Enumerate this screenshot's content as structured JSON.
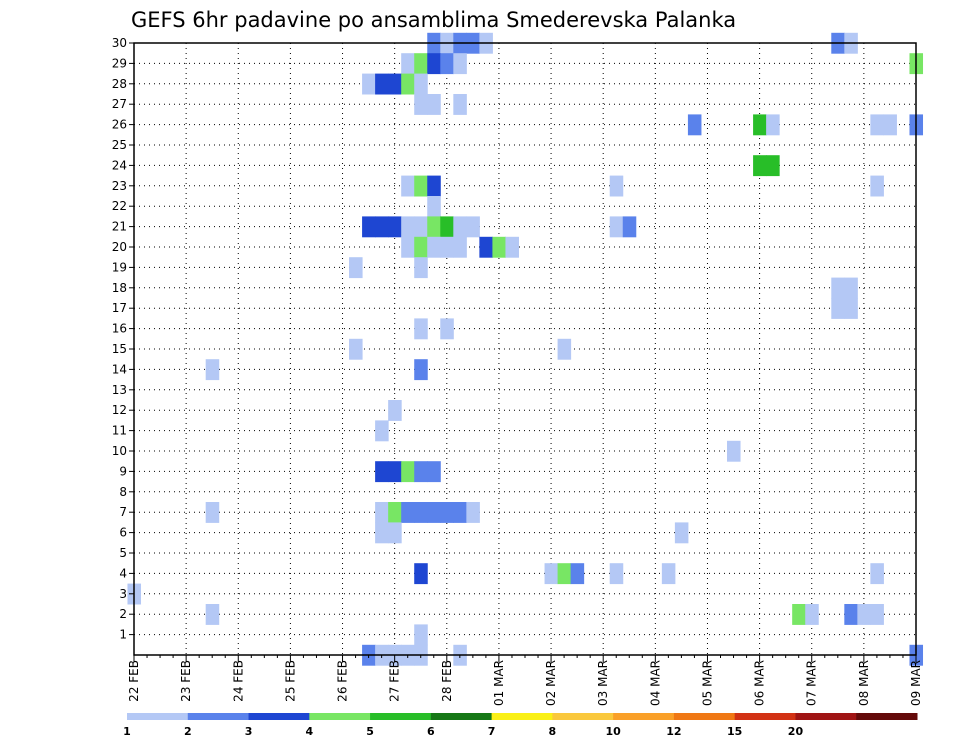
{
  "chart_data": {
    "type": "heatmap",
    "title": "GEFS 6hr padavine po ansamblima Smederevska Palanka",
    "x_tick_labels": [
      "22 FEB",
      "23 FEB",
      "24 FEB",
      "25 FEB",
      "26 FEB",
      "27 FEB",
      "28 FEB",
      "01 MAR",
      "02 MAR",
      "03 MAR",
      "04 MAR",
      "05 MAR",
      "06 MAR",
      "07 MAR",
      "08 MAR",
      "09 MAR"
    ],
    "x_range_steps": [
      0,
      60
    ],
    "y_tick_labels": [
      "1",
      "2",
      "3",
      "4",
      "5",
      "6",
      "7",
      "8",
      "9",
      "10",
      "11",
      "12",
      "13",
      "14",
      "15",
      "16",
      "17",
      "18",
      "19",
      "20",
      "21",
      "22",
      "23",
      "24",
      "25",
      "26",
      "27",
      "28",
      "29",
      "30"
    ],
    "y_range": [
      0,
      30
    ],
    "grid": true,
    "colorbar": {
      "labels": [
        "1",
        "2",
        "3",
        "4",
        "5",
        "6",
        "7",
        "8",
        "10",
        "12",
        "15",
        "20"
      ],
      "colors": [
        "#b4c8f5",
        "#5a82eb",
        "#1e46d2",
        "#78e664",
        "#28be28",
        "#167816",
        "#faf016",
        "#fac83c",
        "#faa028",
        "#f07814",
        "#d23214",
        "#a01414",
        "#640a0a"
      ]
    },
    "cells": [
      {
        "member": 30,
        "step": 23,
        "bin": 1
      },
      {
        "member": 30,
        "step": 24,
        "bin": 0
      },
      {
        "member": 30,
        "step": 25,
        "bin": 1
      },
      {
        "member": 30,
        "step": 26,
        "bin": 1
      },
      {
        "member": 30,
        "step": 27,
        "bin": 0
      },
      {
        "member": 30,
        "step": 54,
        "bin": 1
      },
      {
        "member": 30,
        "step": 55,
        "bin": 0
      },
      {
        "member": 29,
        "step": 21,
        "bin": 0
      },
      {
        "member": 29,
        "step": 22,
        "bin": 3
      },
      {
        "member": 29,
        "step": 23,
        "bin": 2
      },
      {
        "member": 29,
        "step": 24,
        "bin": 1
      },
      {
        "member": 29,
        "step": 25,
        "bin": 0
      },
      {
        "member": 29,
        "step": 60,
        "bin": 3
      },
      {
        "member": 28,
        "step": 18,
        "bin": 0
      },
      {
        "member": 28,
        "step": 19,
        "bin": 2
      },
      {
        "member": 28,
        "step": 20,
        "bin": 2
      },
      {
        "member": 28,
        "step": 21,
        "bin": 3
      },
      {
        "member": 28,
        "step": 22,
        "bin": 0
      },
      {
        "member": 27,
        "step": 22,
        "bin": 0
      },
      {
        "member": 27,
        "step": 23,
        "bin": 0
      },
      {
        "member": 27,
        "step": 25,
        "bin": 0
      },
      {
        "member": 26,
        "step": 43,
        "bin": 1
      },
      {
        "member": 26,
        "step": 48,
        "bin": 4
      },
      {
        "member": 26,
        "step": 49,
        "bin": 0
      },
      {
        "member": 26,
        "step": 57,
        "bin": 0
      },
      {
        "member": 26,
        "step": 58,
        "bin": 0
      },
      {
        "member": 26,
        "step": 60,
        "bin": 1
      },
      {
        "member": 24,
        "step": 48,
        "bin": 4
      },
      {
        "member": 24,
        "step": 49,
        "bin": 4
      },
      {
        "member": 23,
        "step": 37,
        "bin": 0
      },
      {
        "member": 23,
        "step": 21,
        "bin": 0
      },
      {
        "member": 23,
        "step": 22,
        "bin": 3
      },
      {
        "member": 23,
        "step": 23,
        "bin": 2
      },
      {
        "member": 22,
        "step": 23,
        "bin": 0
      },
      {
        "member": 23,
        "step": 57,
        "bin": 0
      },
      {
        "member": 21,
        "step": 18,
        "bin": 2
      },
      {
        "member": 21,
        "step": 19,
        "bin": 2
      },
      {
        "member": 21,
        "step": 20,
        "bin": 2
      },
      {
        "member": 21,
        "step": 21,
        "bin": 0
      },
      {
        "member": 21,
        "step": 22,
        "bin": 0
      },
      {
        "member": 21,
        "step": 23,
        "bin": 3
      },
      {
        "member": 21,
        "step": 24,
        "bin": 4
      },
      {
        "member": 21,
        "step": 25,
        "bin": 0
      },
      {
        "member": 21,
        "step": 26,
        "bin": 0
      },
      {
        "member": 21,
        "step": 37,
        "bin": 0
      },
      {
        "member": 21,
        "step": 38,
        "bin": 1
      },
      {
        "member": 20,
        "step": 21,
        "bin": 0
      },
      {
        "member": 20,
        "step": 22,
        "bin": 3
      },
      {
        "member": 20,
        "step": 23,
        "bin": 0
      },
      {
        "member": 20,
        "step": 24,
        "bin": 0
      },
      {
        "member": 20,
        "step": 25,
        "bin": 0
      },
      {
        "member": 20,
        "step": 27,
        "bin": 2
      },
      {
        "member": 20,
        "step": 28,
        "bin": 3
      },
      {
        "member": 20,
        "step": 29,
        "bin": 0
      },
      {
        "member": 19,
        "step": 17,
        "bin": 0
      },
      {
        "member": 19,
        "step": 22,
        "bin": 0
      },
      {
        "member": 18,
        "step": 54,
        "bin": 0
      },
      {
        "member": 18,
        "step": 55,
        "bin": 0
      },
      {
        "member": 17,
        "step": 54,
        "bin": 0
      },
      {
        "member": 17,
        "step": 55,
        "bin": 0
      },
      {
        "member": 16,
        "step": 22,
        "bin": 0
      },
      {
        "member": 16,
        "step": 24,
        "bin": 0
      },
      {
        "member": 15,
        "step": 17,
        "bin": 0
      },
      {
        "member": 15,
        "step": 33,
        "bin": 0
      },
      {
        "member": 14,
        "step": 6,
        "bin": 0
      },
      {
        "member": 14,
        "step": 22,
        "bin": 1
      },
      {
        "member": 12,
        "step": 20,
        "bin": 0
      },
      {
        "member": 11,
        "step": 19,
        "bin": 0
      },
      {
        "member": 10,
        "step": 46,
        "bin": 0
      },
      {
        "member": 9,
        "step": 19,
        "bin": 2
      },
      {
        "member": 9,
        "step": 20,
        "bin": 2
      },
      {
        "member": 9,
        "step": 21,
        "bin": 3
      },
      {
        "member": 9,
        "step": 22,
        "bin": 1
      },
      {
        "member": 9,
        "step": 23,
        "bin": 1
      },
      {
        "member": 7,
        "step": 6,
        "bin": 0
      },
      {
        "member": 7,
        "step": 19,
        "bin": 0
      },
      {
        "member": 7,
        "step": 20,
        "bin": 3
      },
      {
        "member": 7,
        "step": 21,
        "bin": 1
      },
      {
        "member": 7,
        "step": 22,
        "bin": 1
      },
      {
        "member": 7,
        "step": 23,
        "bin": 1
      },
      {
        "member": 7,
        "step": 24,
        "bin": 1
      },
      {
        "member": 7,
        "step": 25,
        "bin": 1
      },
      {
        "member": 7,
        "step": 26,
        "bin": 0
      },
      {
        "member": 6,
        "step": 19,
        "bin": 0
      },
      {
        "member": 6,
        "step": 20,
        "bin": 0
      },
      {
        "member": 6,
        "step": 42,
        "bin": 0
      },
      {
        "member": 4,
        "step": 22,
        "bin": 2
      },
      {
        "member": 4,
        "step": 32,
        "bin": 0
      },
      {
        "member": 4,
        "step": 33,
        "bin": 3
      },
      {
        "member": 4,
        "step": 34,
        "bin": 1
      },
      {
        "member": 4,
        "step": 37,
        "bin": 0
      },
      {
        "member": 4,
        "step": 41,
        "bin": 0
      },
      {
        "member": 4,
        "step": 57,
        "bin": 0
      },
      {
        "member": 3,
        "step": 0,
        "bin": 0
      },
      {
        "member": 2,
        "step": 6,
        "bin": 0
      },
      {
        "member": 2,
        "step": 51,
        "bin": 3
      },
      {
        "member": 2,
        "step": 52,
        "bin": 0
      },
      {
        "member": 2,
        "step": 55,
        "bin": 1
      },
      {
        "member": 2,
        "step": 56,
        "bin": 0
      },
      {
        "member": 2,
        "step": 57,
        "bin": 0
      },
      {
        "member": 1,
        "step": 22,
        "bin": 0
      },
      {
        "member": 0,
        "step": 18,
        "bin": 1
      },
      {
        "member": 0,
        "step": 19,
        "bin": 0
      },
      {
        "member": 0,
        "step": 20,
        "bin": 0
      },
      {
        "member": 0,
        "step": 21,
        "bin": 0
      },
      {
        "member": 0,
        "step": 22,
        "bin": 0
      },
      {
        "member": 0,
        "step": 25,
        "bin": 0
      },
      {
        "member": 0,
        "step": 60,
        "bin": 1
      }
    ]
  }
}
